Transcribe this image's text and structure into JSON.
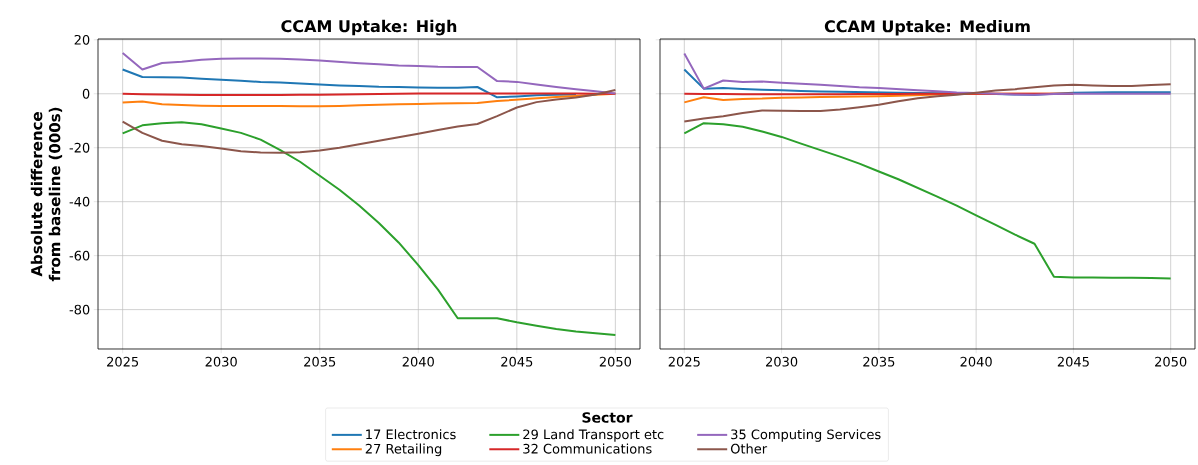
{
  "chart_data": [
    {
      "type": "line",
      "title": "CCAM Uptake: High",
      "ylabel": "Absolute difference from baseline (000s)",
      "legend_title": "Sector",
      "legend": "bottom",
      "grid": true,
      "x": [
        2025,
        2026,
        2027,
        2028,
        2029,
        2030,
        2031,
        2032,
        2033,
        2034,
        2035,
        2036,
        2037,
        2038,
        2039,
        2040,
        2041,
        2042,
        2043,
        2044,
        2045,
        2046,
        2047,
        2048,
        2049,
        2050
      ],
      "xlim": [
        2023.75,
        2051.25
      ],
      "ylim": [
        -94.6,
        20.3
      ],
      "xticks": [
        2025,
        2030,
        2035,
        2040,
        2045,
        2050
      ],
      "yticks": [
        -80,
        -60,
        -40,
        -20,
        0,
        20
      ],
      "series": [
        {
          "name": "17 Electronics",
          "color": "#1f77b4",
          "values": [
            9.0,
            6.2,
            6.1,
            6.0,
            5.6,
            5.2,
            4.8,
            4.4,
            4.2,
            3.8,
            3.4,
            3.1,
            2.9,
            2.6,
            2.5,
            2.3,
            2.2,
            2.2,
            2.5,
            -1.3,
            -1.0,
            -0.6,
            -0.4,
            -0.3,
            null,
            null
          ]
        },
        {
          "name": "27 Retailing",
          "color": "#ff7f0e",
          "values": [
            -3.2,
            -2.9,
            -3.9,
            -4.2,
            -4.4,
            -4.5,
            -4.5,
            -4.5,
            -4.5,
            -4.6,
            -4.6,
            -4.5,
            -4.3,
            -4.1,
            -3.9,
            -3.8,
            -3.6,
            -3.5,
            -3.4,
            -2.7,
            -2.2,
            -1.7,
            -1.2,
            -0.8,
            -0.4,
            0
          ]
        },
        {
          "name": "29 Land Transport etc",
          "color": "#2ca02c",
          "values": [
            -14.7,
            -11.7,
            -10.9,
            -10.6,
            -11.3,
            -12.9,
            -14.5,
            -17,
            -20.9,
            -25.2,
            -30.4,
            -35.6,
            -41.4,
            -47.9,
            -55.1,
            -63.5,
            -72.6,
            -83.2,
            -83.2,
            -83.2,
            -84.7,
            -86,
            -87.2,
            -88.1,
            -88.8,
            -89.4
          ]
        },
        {
          "name": "32 Communications",
          "color": "#d62728",
          "values": [
            0,
            -0.2,
            -0.3,
            -0.4,
            -0.5,
            -0.5,
            -0.5,
            -0.5,
            -0.5,
            -0.4,
            -0.4,
            -0.3,
            -0.2,
            -0.1,
            0,
            0.1,
            0.1,
            0.1,
            0.1,
            0.1,
            0.1,
            0.1,
            0.1,
            0.1,
            0,
            0
          ]
        },
        {
          "name": "35 Computing Services",
          "color": "#9467bd",
          "values": [
            15.1,
            9.0,
            11.4,
            11.9,
            12.6,
            13,
            13.1,
            13.1,
            13,
            12.7,
            12.3,
            11.8,
            11.3,
            10.9,
            10.5,
            10.3,
            10,
            9.9,
            9.9,
            4.7,
            4.4,
            3.4,
            2.5,
            1.7,
            0.9,
            0.1
          ]
        },
        {
          "name": "Other",
          "color": "#8c564b",
          "values": [
            -10.3,
            -14.5,
            -17.4,
            -18.7,
            -19.4,
            -20.3,
            -21.3,
            -21.8,
            -21.9,
            -21.7,
            -21.0,
            -20,
            -18.7,
            -17.4,
            -16.1,
            -14.8,
            -13.4,
            -12.1,
            -11.2,
            -8.3,
            -5.1,
            -3.1,
            -2.1,
            -1.4,
            -0.3,
            1.4
          ]
        }
      ]
    },
    {
      "type": "line",
      "title": "CCAM Uptake: Medium",
      "grid": true,
      "tick_labels": "x",
      "x": [
        2025,
        2026,
        2027,
        2028,
        2029,
        2030,
        2031,
        2032,
        2033,
        2034,
        2035,
        2036,
        2037,
        2038,
        2039,
        2040,
        2041,
        2042,
        2043,
        2044,
        2045,
        2046,
        2047,
        2048,
        2049,
        2050
      ],
      "xlim": [
        2023.75,
        2051.25
      ],
      "ylim": [
        -94.6,
        20.3
      ],
      "xticks": [
        2025,
        2030,
        2035,
        2040,
        2045,
        2050
      ],
      "yticks": [
        -80,
        -60,
        -40,
        -20,
        0,
        20
      ],
      "series": [
        {
          "color": "#1f77b4",
          "values": [
            9.0,
            1.9,
            2.1,
            1.8,
            1.5,
            1.3,
            1.0,
            0.8,
            0.7,
            0.6,
            0.5,
            0.4,
            0.3,
            0.2,
            0.2,
            0.1,
            -0.1,
            -0.3,
            -0.4,
            0,
            0.4,
            0.5,
            0.6,
            0.6,
            0.6,
            0.6
          ]
        },
        {
          "color": "#ff7f0e",
          "values": [
            -3.2,
            -1.3,
            -2.3,
            -1.9,
            -1.8,
            -1.5,
            -1.4,
            -1.2,
            -1.1,
            -1.0,
            -0.9,
            -0.7,
            -0.5,
            -0.3,
            -0.1,
            0,
            0,
            0,
            0,
            0,
            0,
            null,
            null,
            null,
            null,
            null
          ]
        },
        {
          "color": "#2ca02c",
          "values": [
            -14.7,
            -10.9,
            -11.3,
            -12.2,
            -14.0,
            -16.0,
            -18.5,
            -20.9,
            -23.3,
            -25.9,
            -28.8,
            -31.7,
            -34.9,
            -38.1,
            -41.5,
            -45.1,
            -48.6,
            -52.2,
            -55.6,
            -67.8,
            -68.1,
            -68.1,
            -68.2,
            -68.2,
            -68.3,
            -68.5
          ]
        },
        {
          "color": "#d62728",
          "values": [
            0,
            -0.1,
            -0.1,
            -0.2,
            -0.2,
            -0.2,
            -0.2,
            -0.2,
            -0.2,
            -0.1,
            -0.1,
            -0.1,
            0,
            0,
            0,
            0,
            0,
            0,
            0,
            0,
            0,
            null,
            null,
            null,
            null,
            null
          ]
        },
        {
          "color": "#9467bd",
          "values": [
            14.9,
            1.9,
            4.9,
            4.4,
            4.5,
            4.1,
            3.7,
            3.3,
            2.9,
            2.4,
            2.1,
            1.7,
            1.3,
            0.9,
            0.5,
            0.3,
            0,
            -0.3,
            -0.4,
            -0.1,
            0,
            0,
            0,
            0,
            0,
            0
          ]
        },
        {
          "color": "#8c564b",
          "values": [
            -10.3,
            -9.2,
            -8.3,
            -7.1,
            -6.2,
            -6.3,
            -6.4,
            -6.4,
            -5.8,
            -5.0,
            -4.1,
            -2.8,
            -1.7,
            -0.9,
            -0.4,
            0.4,
            1.2,
            1.7,
            2.4,
            3.1,
            3.3,
            3.1,
            2.9,
            2.9,
            3.2,
            3.5
          ]
        }
      ]
    }
  ]
}
